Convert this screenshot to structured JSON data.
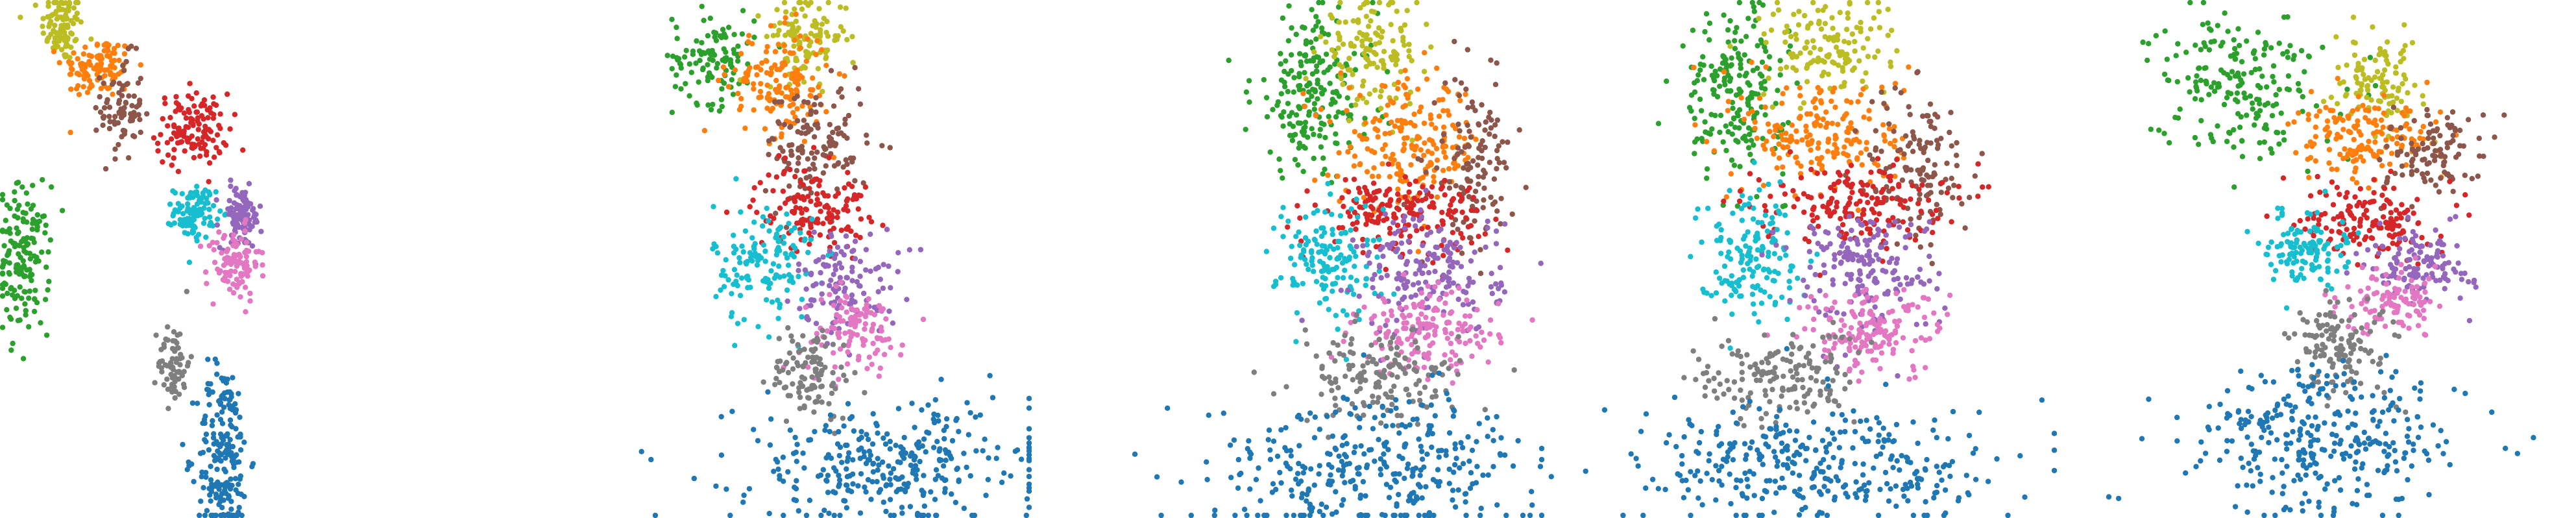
{
  "palette": {
    "blue": "#1f77b4",
    "orange": "#ff7f0e",
    "green": "#2ca02c",
    "red": "#d62728",
    "purple": "#9467bd",
    "brown": "#8c564b",
    "pink": "#e377c2",
    "gray": "#7f7f7f",
    "olive": "#bcbd22",
    "cyan": "#17becf"
  },
  "chart_data": [
    {
      "type": "scatter",
      "axes": "hidden",
      "grid": false,
      "legend": "none",
      "xlim": [
        0,
        1
      ],
      "ylim": [
        0,
        1
      ],
      "series": [
        {
          "color": "olive",
          "clusters": [
            {
              "cx": 0.12,
              "cy": 0.95,
              "sx": 0.02,
              "sy": 0.035,
              "n": 100
            }
          ]
        },
        {
          "color": "orange",
          "clusters": [
            {
              "cx": 0.19,
              "cy": 0.87,
              "sx": 0.035,
              "sy": 0.03,
              "n": 110
            }
          ]
        },
        {
          "color": "brown",
          "clusters": [
            {
              "cx": 0.235,
              "cy": 0.79,
              "sx": 0.02,
              "sy": 0.05,
              "n": 80
            }
          ]
        },
        {
          "color": "red",
          "clusters": [
            {
              "cx": 0.37,
              "cy": 0.75,
              "sx": 0.035,
              "sy": 0.035,
              "n": 130
            }
          ]
        },
        {
          "color": "green",
          "clusters": [
            {
              "cx": 0.045,
              "cy": 0.5,
              "sx": 0.025,
              "sy": 0.07,
              "n": 160
            }
          ]
        },
        {
          "color": "cyan",
          "clusters": [
            {
              "cx": 0.375,
              "cy": 0.59,
              "sx": 0.02,
              "sy": 0.025,
              "n": 100
            }
          ]
        },
        {
          "color": "purple",
          "clusters": [
            {
              "cx": 0.465,
              "cy": 0.58,
              "sx": 0.02,
              "sy": 0.03,
              "n": 100
            }
          ]
        },
        {
          "color": "pink",
          "clusters": [
            {
              "cx": 0.45,
              "cy": 0.49,
              "sx": 0.025,
              "sy": 0.035,
              "n": 100
            }
          ]
        },
        {
          "color": "gray",
          "clusters": [
            {
              "cx": 0.335,
              "cy": 0.3,
              "sx": 0.015,
              "sy": 0.04,
              "n": 70
            }
          ]
        },
        {
          "color": "blue",
          "clusters": [
            {
              "cx": 0.43,
              "cy": 0.12,
              "sx": 0.025,
              "sy": 0.09,
              "n": 200
            }
          ]
        }
      ]
    },
    {
      "type": "scatter",
      "axes": "hidden",
      "grid": false,
      "legend": "none",
      "xlim": [
        0,
        1
      ],
      "ylim": [
        0,
        1
      ],
      "series": [
        {
          "color": "green",
          "clusters": [
            {
              "cx": 0.38,
              "cy": 0.89,
              "sx": 0.04,
              "sy": 0.045,
              "n": 110
            }
          ]
        },
        {
          "color": "olive",
          "clusters": [
            {
              "cx": 0.56,
              "cy": 0.93,
              "sx": 0.04,
              "sy": 0.04,
              "n": 110
            }
          ]
        },
        {
          "color": "orange",
          "clusters": [
            {
              "cx": 0.51,
              "cy": 0.84,
              "sx": 0.05,
              "sy": 0.05,
              "n": 150
            }
          ]
        },
        {
          "color": "brown",
          "clusters": [
            {
              "cx": 0.58,
              "cy": 0.72,
              "sx": 0.05,
              "sy": 0.06,
              "n": 130
            }
          ]
        },
        {
          "color": "red",
          "clusters": [
            {
              "cx": 0.57,
              "cy": 0.6,
              "sx": 0.055,
              "sy": 0.04,
              "n": 140
            }
          ]
        },
        {
          "color": "cyan",
          "clusters": [
            {
              "cx": 0.48,
              "cy": 0.49,
              "sx": 0.05,
              "sy": 0.06,
              "n": 140
            }
          ]
        },
        {
          "color": "purple",
          "clusters": [
            {
              "cx": 0.64,
              "cy": 0.46,
              "sx": 0.05,
              "sy": 0.05,
              "n": 120
            }
          ]
        },
        {
          "color": "pink",
          "clusters": [
            {
              "cx": 0.65,
              "cy": 0.36,
              "sx": 0.05,
              "sy": 0.04,
              "n": 110
            }
          ]
        },
        {
          "color": "gray",
          "clusters": [
            {
              "cx": 0.57,
              "cy": 0.28,
              "sx": 0.04,
              "sy": 0.045,
              "n": 110
            }
          ]
        },
        {
          "color": "blue",
          "clusters": [
            {
              "cx": 0.72,
              "cy": 0.1,
              "sx": 0.15,
              "sy": 0.06,
              "n": 320
            }
          ]
        }
      ]
    },
    {
      "type": "scatter",
      "axes": "hidden",
      "grid": false,
      "legend": "none",
      "xlim": [
        0,
        1
      ],
      "ylim": [
        0,
        1
      ],
      "series": [
        {
          "color": "green",
          "clusters": [
            {
              "cx": 0.55,
              "cy": 0.82,
              "sx": 0.06,
              "sy": 0.08,
              "n": 200
            }
          ]
        },
        {
          "color": "olive",
          "clusters": [
            {
              "cx": 0.66,
              "cy": 0.9,
              "sx": 0.05,
              "sy": 0.05,
              "n": 130
            }
          ]
        },
        {
          "color": "orange",
          "clusters": [
            {
              "cx": 0.74,
              "cy": 0.72,
              "sx": 0.07,
              "sy": 0.06,
              "n": 200
            }
          ]
        },
        {
          "color": "brown",
          "clusters": [
            {
              "cx": 0.86,
              "cy": 0.68,
              "sx": 0.04,
              "sy": 0.08,
              "n": 130
            }
          ]
        },
        {
          "color": "red",
          "clusters": [
            {
              "cx": 0.72,
              "cy": 0.59,
              "sx": 0.08,
              "sy": 0.035,
              "n": 180
            }
          ]
        },
        {
          "color": "cyan",
          "clusters": [
            {
              "cx": 0.58,
              "cy": 0.5,
              "sx": 0.05,
              "sy": 0.06,
              "n": 150
            }
          ]
        },
        {
          "color": "purple",
          "clusters": [
            {
              "cx": 0.78,
              "cy": 0.47,
              "sx": 0.07,
              "sy": 0.06,
              "n": 180
            }
          ]
        },
        {
          "color": "pink",
          "clusters": [
            {
              "cx": 0.77,
              "cy": 0.36,
              "sx": 0.07,
              "sy": 0.04,
              "n": 160
            }
          ]
        },
        {
          "color": "gray",
          "clusters": [
            {
              "cx": 0.68,
              "cy": 0.27,
              "sx": 0.08,
              "sy": 0.045,
              "n": 160
            }
          ]
        },
        {
          "color": "blue",
          "clusters": [
            {
              "cx": 0.67,
              "cy": 0.1,
              "sx": 0.16,
              "sy": 0.07,
              "n": 340
            }
          ]
        }
      ]
    },
    {
      "type": "scatter",
      "axes": "hidden",
      "grid": false,
      "legend": "none",
      "xlim": [
        0,
        1
      ],
      "ylim": [
        0,
        1
      ],
      "series": [
        {
          "color": "green",
          "clusters": [
            {
              "cx": 0.37,
              "cy": 0.82,
              "sx": 0.05,
              "sy": 0.08,
              "n": 200
            }
          ]
        },
        {
          "color": "olive",
          "clusters": [
            {
              "cx": 0.55,
              "cy": 0.91,
              "sx": 0.06,
              "sy": 0.05,
              "n": 140
            }
          ]
        },
        {
          "color": "orange",
          "clusters": [
            {
              "cx": 0.55,
              "cy": 0.74,
              "sx": 0.08,
              "sy": 0.06,
              "n": 190
            }
          ]
        },
        {
          "color": "brown",
          "clusters": [
            {
              "cx": 0.73,
              "cy": 0.68,
              "sx": 0.05,
              "sy": 0.08,
              "n": 130
            }
          ]
        },
        {
          "color": "red",
          "clusters": [
            {
              "cx": 0.6,
              "cy": 0.61,
              "sx": 0.09,
              "sy": 0.04,
              "n": 180
            }
          ]
        },
        {
          "color": "cyan",
          "clusters": [
            {
              "cx": 0.4,
              "cy": 0.51,
              "sx": 0.05,
              "sy": 0.06,
              "n": 150
            }
          ]
        },
        {
          "color": "purple",
          "clusters": [
            {
              "cx": 0.62,
              "cy": 0.48,
              "sx": 0.07,
              "sy": 0.06,
              "n": 180
            }
          ]
        },
        {
          "color": "pink",
          "clusters": [
            {
              "cx": 0.64,
              "cy": 0.36,
              "sx": 0.07,
              "sy": 0.04,
              "n": 160
            }
          ]
        },
        {
          "color": "gray",
          "clusters": [
            {
              "cx": 0.45,
              "cy": 0.27,
              "sx": 0.08,
              "sy": 0.045,
              "n": 160
            }
          ]
        },
        {
          "color": "blue",
          "clusters": [
            {
              "cx": 0.55,
              "cy": 0.1,
              "sx": 0.18,
              "sy": 0.06,
              "n": 340
            }
          ]
        }
      ]
    },
    {
      "type": "scatter",
      "axes": "hidden",
      "grid": false,
      "legend": "none",
      "xlim": [
        0,
        1
      ],
      "ylim": [
        0,
        1
      ],
      "series": [
        {
          "color": "green",
          "clusters": [
            {
              "cx": 0.35,
              "cy": 0.84,
              "sx": 0.08,
              "sy": 0.07,
              "n": 200
            }
          ]
        },
        {
          "color": "olive",
          "clusters": [
            {
              "cx": 0.62,
              "cy": 0.84,
              "sx": 0.04,
              "sy": 0.04,
              "n": 110
            }
          ]
        },
        {
          "color": "orange",
          "clusters": [
            {
              "cx": 0.6,
              "cy": 0.73,
              "sx": 0.07,
              "sy": 0.04,
              "n": 160
            }
          ]
        },
        {
          "color": "brown",
          "clusters": [
            {
              "cx": 0.72,
              "cy": 0.7,
              "sx": 0.05,
              "sy": 0.04,
              "n": 110
            }
          ]
        },
        {
          "color": "red",
          "clusters": [
            {
              "cx": 0.6,
              "cy": 0.58,
              "sx": 0.06,
              "sy": 0.04,
              "n": 150
            }
          ]
        },
        {
          "color": "cyan",
          "clusters": [
            {
              "cx": 0.48,
              "cy": 0.52,
              "sx": 0.04,
              "sy": 0.035,
              "n": 120
            }
          ]
        },
        {
          "color": "purple",
          "clusters": [
            {
              "cx": 0.7,
              "cy": 0.49,
              "sx": 0.05,
              "sy": 0.035,
              "n": 120
            }
          ]
        },
        {
          "color": "pink",
          "clusters": [
            {
              "cx": 0.65,
              "cy": 0.42,
              "sx": 0.05,
              "sy": 0.03,
              "n": 110
            }
          ]
        },
        {
          "color": "gray",
          "clusters": [
            {
              "cx": 0.55,
              "cy": 0.33,
              "sx": 0.05,
              "sy": 0.05,
              "n": 130
            }
          ]
        },
        {
          "color": "blue",
          "clusters": [
            {
              "cx": 0.52,
              "cy": 0.15,
              "sx": 0.13,
              "sy": 0.07,
              "n": 320
            }
          ]
        }
      ]
    }
  ]
}
